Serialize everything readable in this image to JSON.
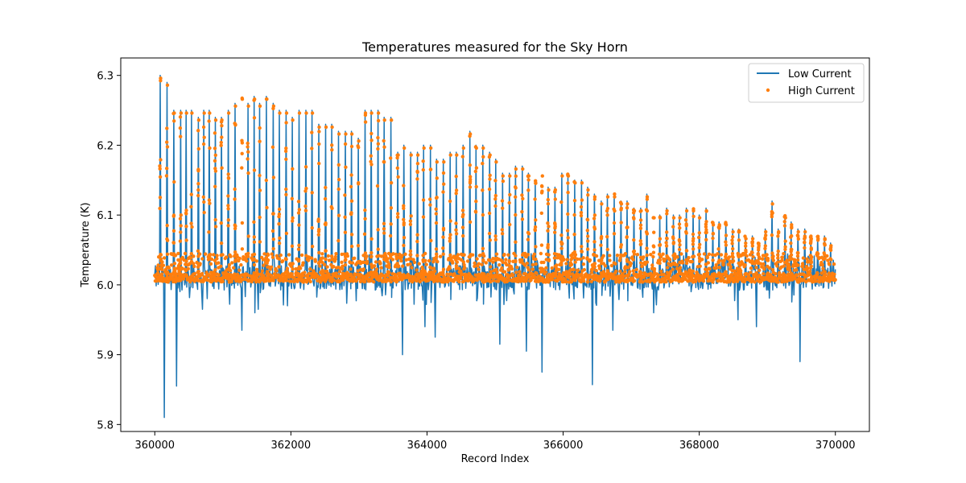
{
  "chart_data": {
    "type": "line+scatter",
    "title": "Temperatures measured for the Sky Horn",
    "xlabel": "Record Index",
    "ylabel": "Temperature (K)",
    "xlim": [
      359500,
      370500
    ],
    "ylim": [
      5.79,
      6.325
    ],
    "x_ticks": [
      360000,
      362000,
      364000,
      366000,
      368000,
      370000
    ],
    "x_tick_labels": [
      "360000",
      "362000",
      "364000",
      "366000",
      "368000",
      "370000"
    ],
    "y_ticks": [
      5.8,
      5.9,
      6.0,
      6.1,
      6.2,
      6.3
    ],
    "y_tick_labels": [
      "5.8",
      "5.9",
      "6.0",
      "6.1",
      "6.2",
      "6.3"
    ],
    "legend_position": "top-right",
    "baseline": 6.01,
    "x_start": 360000,
    "x_end": 370000,
    "series": [
      {
        "name": "Low Current",
        "kind": "line",
        "color": "#1f77b4",
        "spike_x": [
          360080,
          360180,
          360280,
          360380,
          360460,
          360540,
          360640,
          360720,
          360800,
          360890,
          360980,
          361080,
          361180,
          361280,
          361370,
          361460,
          361540,
          361640,
          361740,
          361830,
          361930,
          362020,
          362120,
          362220,
          362310,
          362410,
          362510,
          362600,
          362700,
          362800,
          362890,
          362990,
          363090,
          363180,
          363280,
          363370,
          363470,
          363570,
          363660,
          363760,
          363860,
          363950,
          364050,
          364140,
          364240,
          364340,
          364430,
          364530,
          364630,
          364720,
          364820,
          364920,
          365010,
          365110,
          365210,
          365300,
          365400,
          365490,
          365590,
          365690,
          365780,
          365880,
          365980,
          366070,
          366170,
          366270,
          366360,
          366460,
          366560,
          366650,
          366750,
          366850,
          366940,
          367040,
          367140,
          367230,
          367330,
          367420,
          367520,
          367620,
          367710,
          367810,
          367910,
          368000,
          368100,
          368200,
          368290,
          368390,
          368490,
          368580,
          368680,
          368780,
          368870,
          368970,
          369070,
          369160,
          369260,
          369350,
          369450,
          369550,
          369640,
          369740,
          369840,
          369930
        ],
        "spike_peak": [
          6.3,
          6.29,
          6.25,
          6.25,
          6.25,
          6.25,
          6.24,
          6.25,
          6.25,
          6.24,
          6.24,
          6.25,
          6.26,
          6.27,
          6.26,
          6.27,
          6.26,
          6.27,
          6.26,
          6.25,
          6.25,
          6.24,
          6.25,
          6.25,
          6.25,
          6.23,
          6.23,
          6.23,
          6.22,
          6.22,
          6.22,
          6.21,
          6.25,
          6.25,
          6.25,
          6.24,
          6.24,
          6.19,
          6.2,
          6.19,
          6.19,
          6.2,
          6.2,
          6.18,
          6.18,
          6.19,
          6.19,
          6.2,
          6.22,
          6.2,
          6.2,
          6.19,
          6.18,
          6.16,
          6.16,
          6.17,
          6.17,
          6.16,
          6.15,
          6.16,
          6.14,
          6.14,
          6.16,
          6.16,
          6.15,
          6.15,
          6.14,
          6.13,
          6.12,
          6.13,
          6.13,
          6.12,
          6.12,
          6.11,
          6.11,
          6.13,
          6.1,
          6.1,
          6.11,
          6.1,
          6.1,
          6.11,
          6.11,
          6.1,
          6.11,
          6.09,
          6.09,
          6.09,
          6.08,
          6.08,
          6.07,
          6.07,
          6.06,
          6.08,
          6.12,
          6.08,
          6.1,
          6.09,
          6.08,
          6.08,
          6.07,
          6.07,
          6.07,
          6.06
        ],
        "dip_x": [
          360140,
          360320,
          360700,
          361280,
          361470,
          361520,
          361950,
          363640,
          363970,
          364120,
          365070,
          365460,
          365690,
          366430,
          366730,
          367330,
          368570,
          368840,
          369480
        ],
        "dip_value": [
          5.81,
          5.855,
          5.965,
          5.935,
          5.96,
          5.965,
          5.97,
          5.9,
          5.94,
          5.925,
          5.915,
          5.905,
          5.875,
          5.857,
          5.935,
          5.96,
          5.95,
          5.94,
          5.89
        ]
      },
      {
        "name": "High Current",
        "kind": "scatter",
        "color": "#ff7f0e"
      }
    ]
  }
}
